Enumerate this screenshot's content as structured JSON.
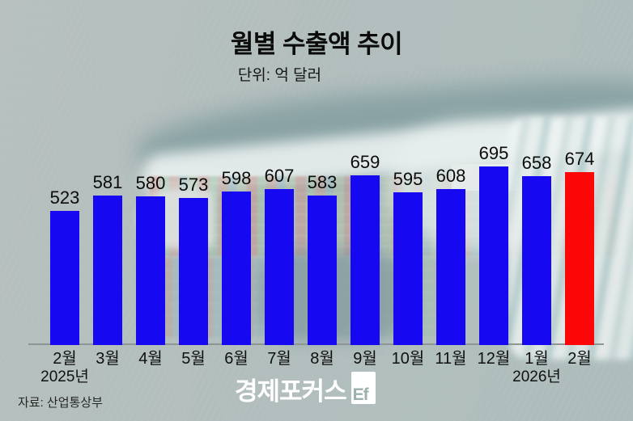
{
  "title": "월별 수출액 추이",
  "subtitle": "단위: 억 달러",
  "source": "자료: 산업통상부",
  "logo": {
    "text": "경제포커스",
    "mark": "Ef"
  },
  "colors": {
    "bar": "#1708f2",
    "highlight": "#fb0707",
    "axis": "#8d9694",
    "text": "#0b0b0b",
    "logo_text": "#ffffff",
    "sea": "#a3b1b0"
  },
  "chart_data": {
    "type": "bar",
    "title": "월별 수출액 추이",
    "unit_label": "단위: 억 달러",
    "categories": [
      "2월",
      "3월",
      "4월",
      "5월",
      "6월",
      "7월",
      "8월",
      "9월",
      "10월",
      "11월",
      "12월",
      "1월",
      "2월"
    ],
    "values": [
      523,
      581,
      580,
      573,
      598,
      607,
      583,
      659,
      595,
      608,
      695,
      658,
      674
    ],
    "highlight_index": 12,
    "year_markers": [
      {
        "index": 0,
        "label": "2025년"
      },
      {
        "index": 11,
        "label": "2026년"
      }
    ],
    "value_labels": true,
    "legend": false,
    "grid": false,
    "ylim": [
      0,
      700
    ],
    "source": "자료: 산업통상부"
  }
}
